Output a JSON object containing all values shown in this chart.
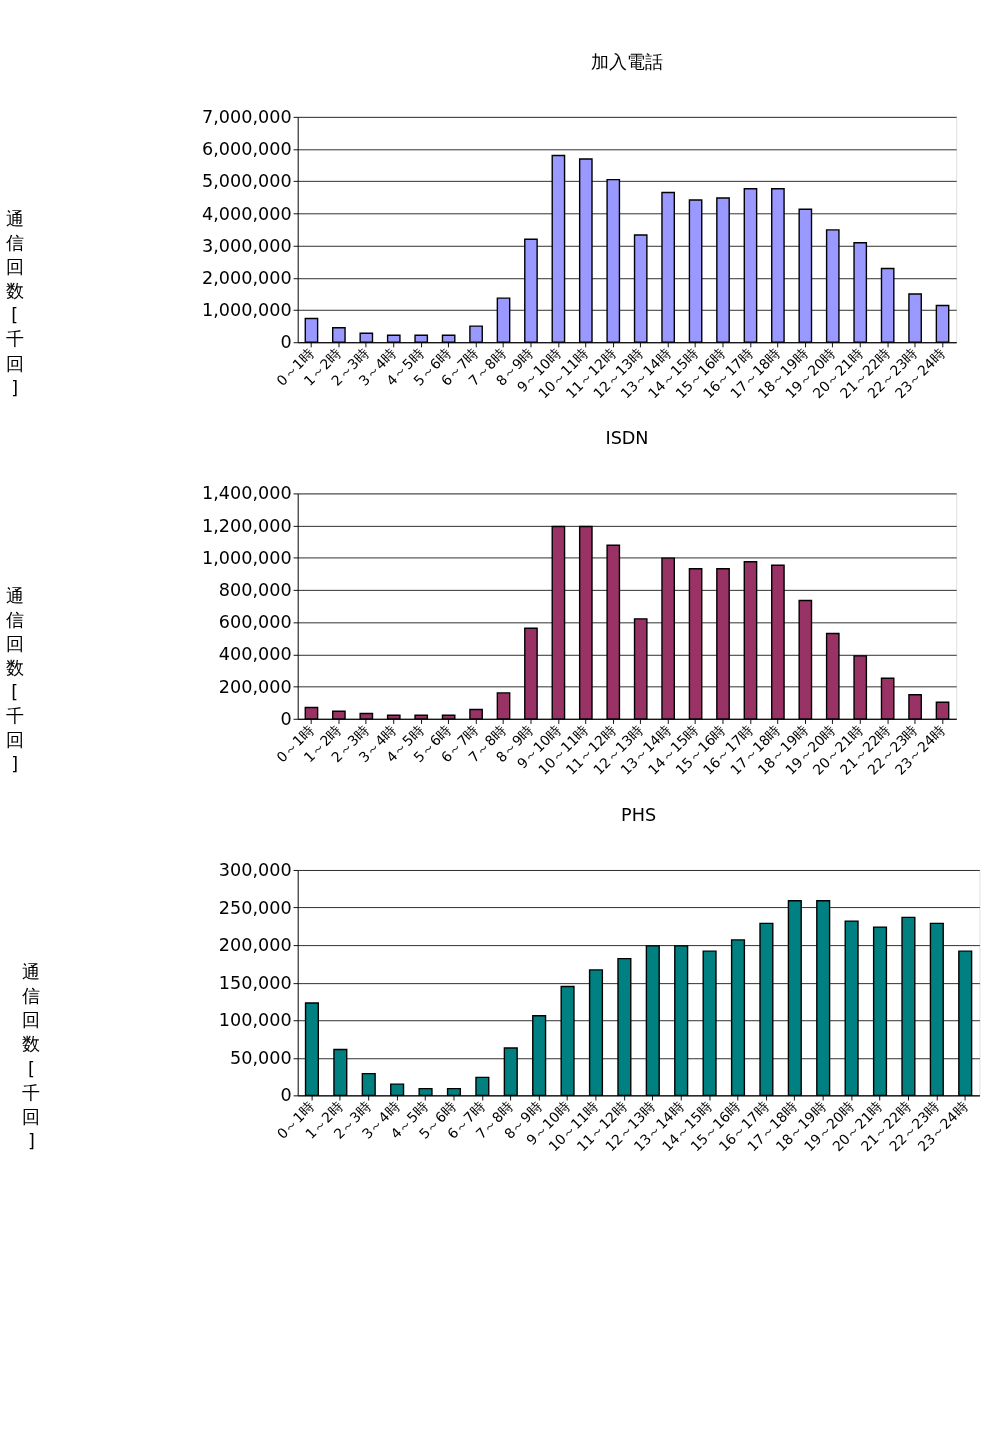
{
  "chart_data": [
    {
      "type": "bar",
      "title": "加入電話",
      "ylabel": "通信回数[千回]",
      "categories": [
        "0～1時",
        "1～2時",
        "2～3時",
        "3～4時",
        "4～5時",
        "5～6時",
        "6～7時",
        "7～8時",
        "8～9時",
        "9～10時",
        "10～11時",
        "11～12時",
        "12～13時",
        "13～14時",
        "14～15時",
        "15～16時",
        "16～17時",
        "17～18時",
        "18～19時",
        "19～20時",
        "20～21時",
        "21～22時",
        "22～23時",
        "23～24時"
      ],
      "color": "#9999ff",
      "values": [
        740000,
        450000,
        280000,
        220000,
        220000,
        220000,
        500000,
        1370000,
        3200000,
        5800000,
        5690000,
        5050000,
        3330000,
        4650000,
        4420000,
        4480000,
        4770000,
        4770000,
        4130000,
        3490000,
        3090000,
        2290000,
        1500000,
        1140000
      ],
      "ylim": [
        0,
        7000000
      ],
      "yticks": [
        0,
        {
          "value": 1000000,
          "label": "1,000,000"
        },
        {
          "value": 2000000,
          "label": "2,000,000"
        },
        {
          "value": 3000000,
          "label": "3,000,000"
        },
        {
          "value": 4000000,
          "label": "4,000,000"
        },
        {
          "value": 5000000,
          "label": "5,000,000"
        },
        {
          "value": 6000000,
          "label": "6,000,000"
        },
        {
          "value": 7000000,
          "label": "7,000,000"
        }
      ],
      "grid": "y"
    },
    {
      "type": "bar",
      "title": "ISDN",
      "ylabel": "通信回数[千回]",
      "categories": [
        "0～1時",
        "1～2時",
        "2～3時",
        "3～4時",
        "4～5時",
        "5～6時",
        "6～7時",
        "7～8時",
        "8～9時",
        "9～10時",
        "10～11時",
        "11～12時",
        "12～13時",
        "13～14時",
        "14～15時",
        "15～16時",
        "16～17時",
        "17～18時",
        "18～19時",
        "19～20時",
        "20～21時",
        "21～22時",
        "22～23時",
        "23～24時"
      ],
      "color": "#993366",
      "values": [
        70000,
        47000,
        33000,
        22000,
        22000,
        22000,
        58000,
        161000,
        563000,
        1195000,
        1195000,
        1078000,
        621000,
        998000,
        932000,
        932000,
        976000,
        954000,
        735000,
        530000,
        391000,
        252000,
        150000,
        103000
      ],
      "ylim": [
        0,
        1400000
      ],
      "yticks": [
        0,
        {
          "value": 200000,
          "label": "200,000"
        },
        {
          "value": 400000,
          "label": "400,000"
        },
        {
          "value": 600000,
          "label": "600,000"
        },
        {
          "value": 800000,
          "label": "800,000"
        },
        {
          "value": 1000000,
          "label": "1,000,000"
        },
        {
          "value": 1200000,
          "label": "1,200,000"
        },
        {
          "value": 1400000,
          "label": "1,400,000"
        }
      ],
      "grid": "y"
    },
    {
      "type": "bar",
      "title": "PHS",
      "ylabel": "通信回数[千回]",
      "categories": [
        "0～1時",
        "1～2時",
        "2～3時",
        "3～4時",
        "4～5時",
        "5～6時",
        "6～7時",
        "7～8時",
        "8～9時",
        "9～10時",
        "10～11時",
        "11～12時",
        "12～13時",
        "13～14時",
        "14～15時",
        "15～16時",
        "16～17時",
        "17～18時",
        "18～19時",
        "19～20時",
        "20～21時",
        "21～22時",
        "22～23時",
        "23～24時"
      ],
      "color": "#008080",
      "values": [
        123000,
        61000,
        29000,
        15000,
        9000,
        9000,
        24000,
        63000,
        106000,
        145000,
        167000,
        182000,
        199000,
        199000,
        192000,
        207000,
        229000,
        259000,
        259000,
        232000,
        224000,
        237000,
        229000,
        192000
      ],
      "ylim": [
        0,
        300000
      ],
      "yticks": [
        0,
        {
          "value": 50000,
          "label": "50,000"
        },
        {
          "value": 100000,
          "label": "100,000"
        },
        {
          "value": 150000,
          "label": "150,000"
        },
        {
          "value": 200000,
          "label": "200,000"
        },
        {
          "value": 250000,
          "label": "250,000"
        },
        {
          "value": 300000,
          "label": "300,000"
        }
      ],
      "grid": "y"
    }
  ]
}
